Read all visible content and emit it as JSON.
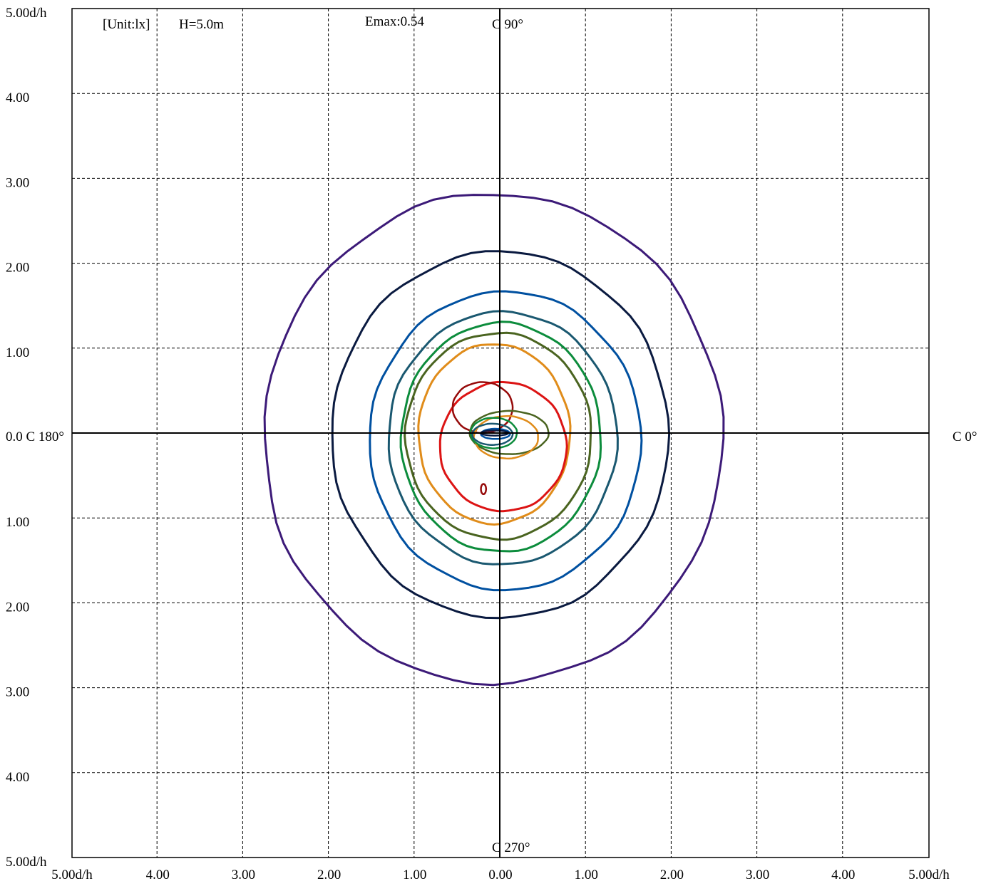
{
  "chart_data": {
    "type": "isolux_contour",
    "header": {
      "unit_label": "[Unit:lx]",
      "height_label": "H=5.0m",
      "emax_label": "Emax:0.54",
      "unit_color": "#1414e6",
      "emax_color": "#e60000"
    },
    "c_plane_labels": {
      "top": "C 90°",
      "bottom": "C 270°",
      "right": "C 0°",
      "left": "0.0 C 180°"
    },
    "xlim": [
      -5,
      5
    ],
    "ylim": [
      -5,
      5
    ],
    "grid": true,
    "grid_step": 1,
    "x_tick_labels": [
      "5.00d/h",
      "4.00",
      "3.00",
      "2.00",
      "1.00",
      "0.00",
      "1.00",
      "2.00",
      "3.00",
      "4.00",
      "5.00d/h"
    ],
    "y_tick_labels": [
      "5.00d/h",
      "4.00",
      "3.00",
      "2.00",
      "1.00",
      "1.00",
      "2.00",
      "3.00",
      "4.00",
      "5.00d/h"
    ],
    "contours": [
      {
        "color": "#3c1a78",
        "left": 2.75,
        "right": 2.6,
        "top": 2.82,
        "bottom": 2.95
      },
      {
        "color": "#0a1a40",
        "left": 1.96,
        "right": 1.97,
        "top": 2.14,
        "bottom": 2.18
      },
      {
        "color": "#0050a0",
        "left": 1.52,
        "right": 1.65,
        "top": 1.67,
        "bottom": 1.85
      },
      {
        "color": "#1a5870",
        "left": 1.3,
        "right": 1.37,
        "top": 1.43,
        "bottom": 1.55
      },
      {
        "color": "#0c8c3c",
        "left": 1.15,
        "right": 1.18,
        "top": 1.3,
        "bottom": 1.4
      },
      {
        "color": "#4a6420",
        "left": 1.1,
        "right": 1.07,
        "top": 1.18,
        "bottom": 1.25
      },
      {
        "color": "#e08c1a",
        "left": 0.95,
        "right": 0.82,
        "top": 1.05,
        "bottom": 1.07
      },
      {
        "color": "#dc1414",
        "left": 0.7,
        "right": 0.78,
        "top": 0.6,
        "bottom": 0.92
      },
      {
        "color": "#960a0a",
        "left": 0.55,
        "right": 0.15,
        "top": 0.6,
        "bottom": 0.0
      },
      {
        "color": "#960a0a",
        "left": 0.22,
        "right": -0.16,
        "top": -0.6,
        "bottom": 0.72
      },
      {
        "color": "#4a6420",
        "left": 0.35,
        "right": 0.57,
        "top": 0.26,
        "bottom": 0.25
      },
      {
        "color": "#e08c1a",
        "left": 0.3,
        "right": 0.45,
        "top": 0.2,
        "bottom": 0.3
      },
      {
        "color": "#0c8c3c",
        "left": 0.34,
        "right": 0.2,
        "top": 0.18,
        "bottom": 0.18
      },
      {
        "color": "#1a5870",
        "left": 0.32,
        "right": 0.15,
        "top": 0.11,
        "bottom": 0.14
      },
      {
        "color": "#0050a0",
        "left": 0.22,
        "right": 0.12,
        "top": 0.05,
        "bottom": 0.07
      },
      {
        "color": "#0a1a40",
        "left": 0.22,
        "right": 0.1,
        "top": 0.03,
        "bottom": 0.03
      }
    ]
  }
}
